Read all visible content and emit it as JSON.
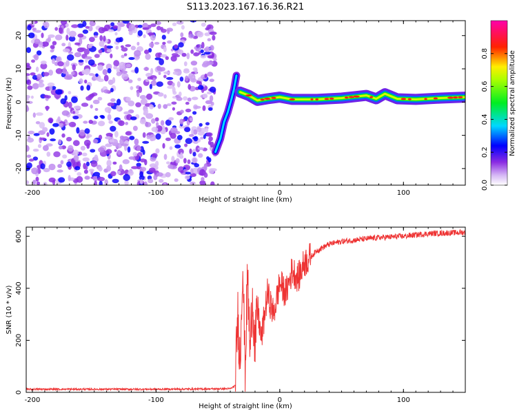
{
  "title": "S113.2023.167.16.36.R21",
  "colors": {
    "snr_line": "#ee3333",
    "noise_purple": "#7a1fe0",
    "axis": "#000000"
  },
  "chart_data": [
    {
      "type": "heatmap",
      "xlabel": "Height of straight line (km)",
      "ylabel": "Frequency (Hz)",
      "xlim": [
        -205,
        150
      ],
      "ylim": [
        -25,
        24.5
      ],
      "xticks": [
        -200,
        -100,
        0,
        100
      ],
      "xtick_labels": [
        "-200",
        "-100",
        "0",
        "100"
      ],
      "yticks": [
        -20,
        -10,
        0,
        10,
        20
      ],
      "ytick_labels": [
        "-20",
        "-10",
        "0",
        "10",
        "20"
      ],
      "colorbar": {
        "label": "Normalized spectral amplitude",
        "range": [
          0,
          1
        ],
        "ticks": [
          0.0,
          0.2,
          0.4,
          0.6,
          0.8
        ],
        "tick_labels": [
          "0.0",
          "0.2",
          "0.4",
          "0.6",
          "0.8"
        ],
        "colormap": "rainbow (purple→blue→cyan→green→yellow→red→magenta)"
      },
      "regions": [
        {
          "name": "noise",
          "x_range": [
            -205,
            -52
          ],
          "y_range": [
            -25,
            24.5
          ],
          "amplitude": 0.15
        },
        {
          "name": "ridge_rise",
          "points": [
            [
              -52,
              -15
            ],
            [
              -48,
              -11
            ],
            [
              -45,
              -6
            ],
            [
              -42,
              -3
            ],
            [
              -39,
              1
            ],
            [
              -37,
              4
            ],
            [
              -35,
              8
            ]
          ],
          "amplitude": 0.2
        },
        {
          "name": "ridge_track",
          "points": [
            [
              -32,
              3
            ],
            [
              -25,
              2
            ],
            [
              -18,
              0.5
            ],
            [
              -10,
              1
            ],
            [
              0,
              1.5
            ],
            [
              10,
              0.8
            ],
            [
              30,
              0.8
            ],
            [
              50,
              1.2
            ],
            [
              70,
              2
            ],
            [
              78,
              1
            ],
            [
              85,
              2.5
            ],
            [
              95,
              1
            ],
            [
              110,
              0.8
            ],
            [
              130,
              1.2
            ],
            [
              150,
              1.5
            ]
          ],
          "amplitude": 0.9
        }
      ],
      "grid": false
    },
    {
      "type": "line",
      "xlabel": "Height of straight line (km)",
      "ylabel": "SNR (10 * v/v)",
      "xlim": [
        -205,
        150
      ],
      "ylim": [
        0,
        635
      ],
      "xticks": [
        -200,
        -100,
        0,
        100
      ],
      "xtick_labels": [
        "-200",
        "-100",
        "0",
        "100"
      ],
      "yticks": [
        0,
        200,
        400,
        600
      ],
      "ytick_labels": [
        "0",
        "200",
        "400",
        "600"
      ],
      "series": [
        {
          "points": [
            [
              -205,
              12
            ],
            [
              -150,
              12
            ],
            [
              -100,
              12
            ],
            [
              -60,
              13
            ],
            [
              -40,
              14
            ],
            [
              -36,
              25
            ],
            [
              -34,
              300
            ],
            [
              -32,
              120
            ],
            [
              -30,
              520
            ],
            [
              -28,
              80
            ],
            [
              -26,
              450
            ],
            [
              -24,
              150
            ],
            [
              -22,
              380
            ],
            [
              -20,
              160
            ],
            [
              -18,
              330
            ],
            [
              -15,
              200
            ],
            [
              -10,
              380
            ],
            [
              -5,
              300
            ],
            [
              0,
              420
            ],
            [
              5,
              380
            ],
            [
              10,
              470
            ],
            [
              15,
              440
            ],
            [
              20,
              500
            ],
            [
              25,
              520
            ],
            [
              30,
              545
            ],
            [
              40,
              570
            ],
            [
              50,
              580
            ],
            [
              60,
              585
            ],
            [
              80,
              595
            ],
            [
              100,
              600
            ],
            [
              120,
              610
            ],
            [
              150,
              615
            ]
          ]
        }
      ],
      "grid": false
    }
  ]
}
